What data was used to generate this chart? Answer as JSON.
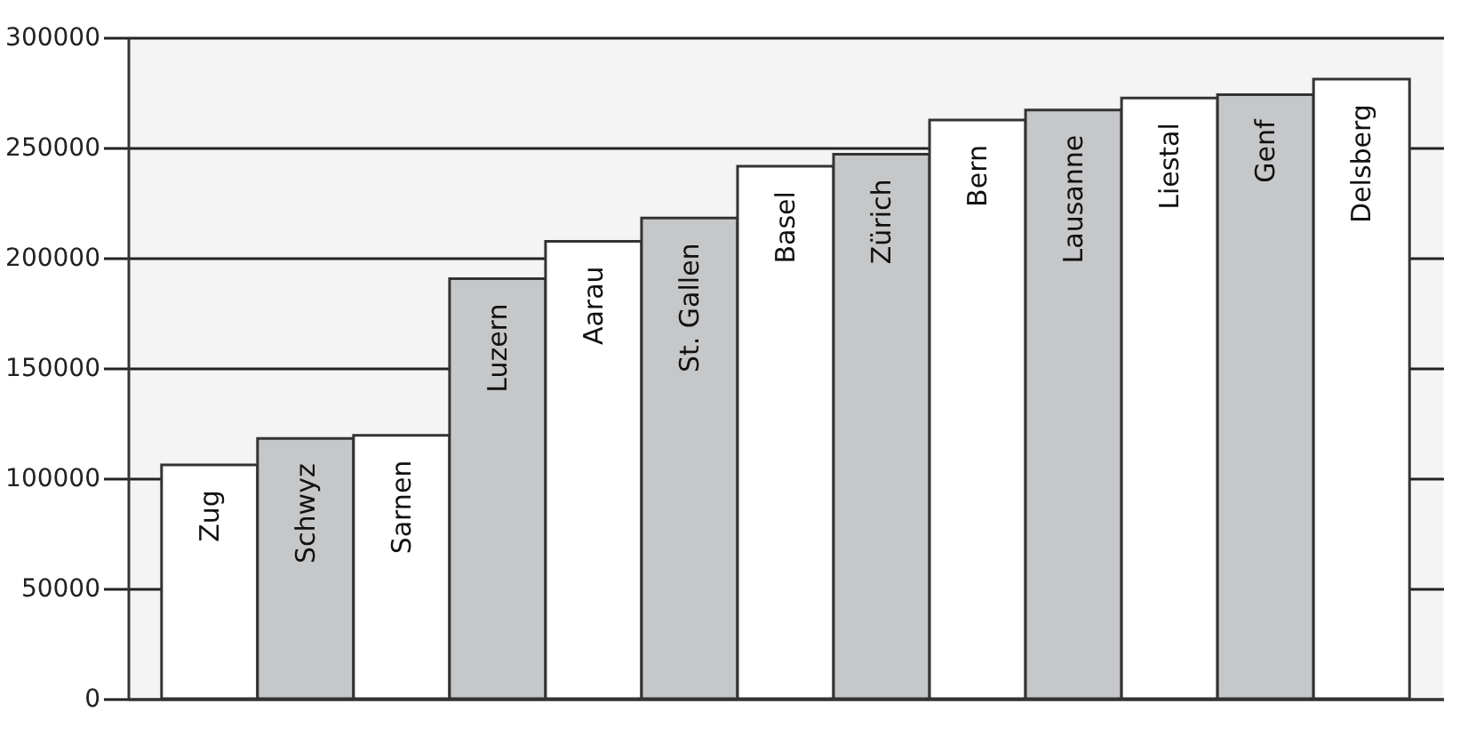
{
  "chart_data": {
    "type": "bar",
    "categories": [
      "Zug",
      "Schwyz",
      "Sarnen",
      "Luzern",
      "Aarau",
      "St. Gallen",
      "Basel",
      "Zürich",
      "Bern",
      "Lausanne",
      "Liestal",
      "Genf",
      "Delsberg"
    ],
    "values": [
      106000,
      118000,
      119500,
      190500,
      207500,
      218000,
      241500,
      247000,
      262500,
      267000,
      272500,
      274000,
      281000
    ],
    "colors": [
      "#ffffff",
      "#c6c7c9",
      "#ffffff",
      "#c6c7c9",
      "#ffffff",
      "#c6c7c9",
      "#ffffff",
      "#c6c7c9",
      "#ffffff",
      "#c6c7c9",
      "#ffffff",
      "#c6c7c9",
      "#ffffff"
    ],
    "ylim": [
      0,
      300000
    ],
    "yticks": [
      0,
      50000,
      100000,
      150000,
      200000,
      250000,
      300000
    ],
    "grid": "y"
  }
}
